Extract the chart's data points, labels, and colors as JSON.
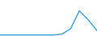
{
  "x": [
    0,
    1,
    2,
    3,
    4,
    5,
    6,
    7,
    8,
    9,
    10,
    11
  ],
  "y": [
    0.3,
    0.3,
    0.3,
    0.3,
    0.3,
    0.3,
    0.3,
    0.5,
    2,
    7,
    4.5,
    1.5
  ],
  "line_color": "#3a9fd9",
  "line_width": 1.0,
  "background_color": "#ffffff",
  "ylim": [
    0,
    10
  ],
  "xlim": [
    0,
    11
  ]
}
